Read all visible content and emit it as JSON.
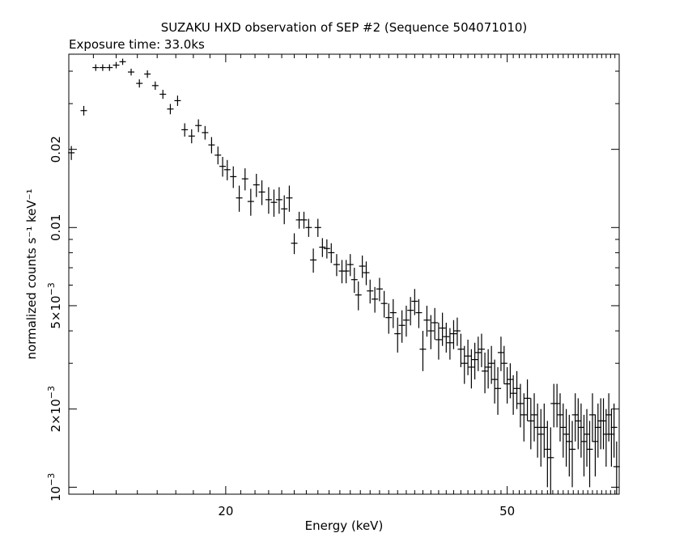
{
  "chart_data": {
    "type": "scatter",
    "title": "SUZAKU HXD observation of SEP #2 (Sequence 504071010)",
    "subtitle": "Exposure time: 33.0ks",
    "xlabel": "Energy (keV)",
    "ylabel": "normalized counts s⁻¹ keV⁻¹",
    "xscale": "log",
    "yscale": "log",
    "xlim": [
      12.0,
      72.0
    ],
    "ylim": [
      0.00094,
      0.0465
    ],
    "grid": false,
    "x_ticks": [
      {
        "value": 20,
        "label": "20"
      },
      {
        "value": 50,
        "label": "50"
      }
    ],
    "y_ticks": [
      {
        "value": 0.001,
        "base": "10",
        "exp": "−3"
      },
      {
        "value": 0.002,
        "base": "2×10",
        "exp": "−3"
      },
      {
        "value": 0.005,
        "base": "5×10",
        "exp": "−3"
      },
      {
        "value": 0.01,
        "label": "0.01"
      },
      {
        "value": 0.02,
        "label": "0.02"
      }
    ],
    "series": [
      {
        "points": [
          [
            12.1,
            0.0194,
            0.0012
          ],
          [
            12.6,
            0.0282,
            0.0012
          ],
          [
            13.1,
            0.0413,
            0.0012
          ],
          [
            13.4,
            0.0413,
            0.0012
          ],
          [
            13.7,
            0.0413,
            0.0012
          ],
          [
            14.0,
            0.0422,
            0.0012
          ],
          [
            14.3,
            0.0435,
            0.0012
          ],
          [
            14.7,
            0.0397,
            0.0012
          ],
          [
            15.1,
            0.0359,
            0.0013
          ],
          [
            15.5,
            0.039,
            0.0013
          ],
          [
            15.9,
            0.0352,
            0.0013
          ],
          [
            16.3,
            0.0326,
            0.0013
          ],
          [
            16.7,
            0.0286,
            0.0013
          ],
          [
            17.1,
            0.0308,
            0.0014
          ],
          [
            17.5,
            0.0238,
            0.0014
          ],
          [
            17.9,
            0.0225,
            0.0014
          ],
          [
            18.3,
            0.0247,
            0.0014
          ],
          [
            18.7,
            0.0232,
            0.0014
          ],
          [
            19.1,
            0.0208,
            0.0015
          ],
          [
            19.5,
            0.019,
            0.0015
          ],
          [
            19.8,
            0.0172,
            0.0015
          ],
          [
            20.1,
            0.0167,
            0.0015
          ],
          [
            20.5,
            0.0157,
            0.0015
          ],
          [
            20.9,
            0.013,
            0.0015
          ],
          [
            21.3,
            0.0154,
            0.0015
          ],
          [
            21.7,
            0.0126,
            0.0015
          ],
          [
            22.1,
            0.0146,
            0.0015
          ],
          [
            22.5,
            0.0137,
            0.0015
          ],
          [
            23.0,
            0.0128,
            0.0015
          ],
          [
            23.4,
            0.0125,
            0.0015
          ],
          [
            23.8,
            0.0128,
            0.0015
          ],
          [
            24.2,
            0.0118,
            0.0015
          ],
          [
            24.6,
            0.013,
            0.0015
          ],
          [
            25.0,
            0.0087,
            0.0008
          ],
          [
            25.4,
            0.0107,
            0.0008
          ],
          [
            25.8,
            0.0107,
            0.0008
          ],
          [
            26.2,
            0.01,
            0.0008
          ],
          [
            26.6,
            0.0075,
            0.0008
          ],
          [
            27.0,
            0.01,
            0.0008
          ],
          [
            27.4,
            0.0084,
            0.0007
          ],
          [
            27.8,
            0.0083,
            0.0007
          ],
          [
            28.2,
            0.008,
            0.0007
          ],
          [
            28.7,
            0.0072,
            0.0007
          ],
          [
            29.2,
            0.0068,
            0.0007
          ],
          [
            29.6,
            0.0068,
            0.0007
          ],
          [
            30.0,
            0.0072,
            0.0007
          ],
          [
            30.4,
            0.0063,
            0.0007
          ],
          [
            30.8,
            0.0055,
            0.0007
          ],
          [
            31.2,
            0.0071,
            0.0007
          ],
          [
            31.6,
            0.0067,
            0.0007
          ],
          [
            32.0,
            0.0057,
            0.0006
          ],
          [
            32.5,
            0.0053,
            0.0006
          ],
          [
            33.0,
            0.0058,
            0.0006
          ],
          [
            33.5,
            0.0051,
            0.0006
          ],
          [
            34.0,
            0.0045,
            0.0006
          ],
          [
            34.5,
            0.0047,
            0.0006
          ],
          [
            35.0,
            0.0039,
            0.0006
          ],
          [
            35.5,
            0.0042,
            0.0006
          ],
          [
            36.0,
            0.0044,
            0.0006
          ],
          [
            36.5,
            0.0048,
            0.0006
          ],
          [
            37.0,
            0.0052,
            0.0006
          ],
          [
            37.5,
            0.0047,
            0.0006
          ],
          [
            38.0,
            0.0034,
            0.0006
          ],
          [
            38.5,
            0.0044,
            0.0006
          ],
          [
            39.0,
            0.004,
            0.0006
          ],
          [
            39.5,
            0.0043,
            0.0006
          ],
          [
            40.0,
            0.0037,
            0.0006
          ],
          [
            40.5,
            0.0041,
            0.0006
          ],
          [
            41.0,
            0.0038,
            0.0005
          ],
          [
            41.5,
            0.0036,
            0.0005
          ],
          [
            42.0,
            0.0039,
            0.0005
          ],
          [
            42.5,
            0.004,
            0.0005
          ],
          [
            43.0,
            0.0034,
            0.0005
          ],
          [
            43.5,
            0.003,
            0.0005
          ],
          [
            44.0,
            0.0032,
            0.0005
          ],
          [
            44.5,
            0.0029,
            0.0005
          ],
          [
            45.0,
            0.0031,
            0.0005
          ],
          [
            45.5,
            0.0033,
            0.0005
          ],
          [
            46.0,
            0.0034,
            0.0005
          ],
          [
            46.5,
            0.0028,
            0.0005
          ],
          [
            47.0,
            0.0029,
            0.0005
          ],
          [
            47.5,
            0.003,
            0.0005
          ],
          [
            48.0,
            0.0026,
            0.0005
          ],
          [
            48.5,
            0.0024,
            0.0005
          ],
          [
            49.0,
            0.0033,
            0.0005
          ],
          [
            49.5,
            0.003,
            0.0005
          ],
          [
            50.0,
            0.0025,
            0.0004
          ],
          [
            50.5,
            0.0026,
            0.0004
          ],
          [
            51.0,
            0.0023,
            0.0004
          ],
          [
            51.6,
            0.0024,
            0.0004
          ],
          [
            52.2,
            0.0021,
            0.0004
          ],
          [
            52.8,
            0.0019,
            0.0004
          ],
          [
            53.4,
            0.0022,
            0.0004
          ],
          [
            54.0,
            0.0018,
            0.0004
          ],
          [
            54.6,
            0.0019,
            0.0004
          ],
          [
            55.2,
            0.0017,
            0.0004
          ],
          [
            55.8,
            0.0016,
            0.0004
          ],
          [
            56.4,
            0.0017,
            0.0004
          ],
          [
            57.0,
            0.0014,
            0.0004
          ],
          [
            57.6,
            0.0013,
            0.0004
          ],
          [
            58.2,
            0.0021,
            0.0004
          ],
          [
            58.8,
            0.0021,
            0.0004
          ],
          [
            59.4,
            0.0019,
            0.0004
          ],
          [
            60.0,
            0.0017,
            0.0004
          ],
          [
            60.6,
            0.0016,
            0.0004
          ],
          [
            61.2,
            0.0015,
            0.0004
          ],
          [
            61.8,
            0.0014,
            0.0004
          ],
          [
            62.4,
            0.0019,
            0.0004
          ],
          [
            63.0,
            0.0018,
            0.0004
          ],
          [
            63.6,
            0.0017,
            0.0004
          ],
          [
            64.2,
            0.0015,
            0.0004
          ],
          [
            64.8,
            0.0016,
            0.0004
          ],
          [
            65.4,
            0.0014,
            0.0004
          ],
          [
            66.0,
            0.0019,
            0.0004
          ],
          [
            66.6,
            0.0015,
            0.0004
          ],
          [
            67.2,
            0.0017,
            0.0004
          ],
          [
            67.8,
            0.0018,
            0.0004
          ],
          [
            68.4,
            0.0018,
            0.0004
          ],
          [
            69.0,
            0.0016,
            0.0004
          ],
          [
            69.6,
            0.0019,
            0.0004
          ],
          [
            70.2,
            0.0016,
            0.0004
          ],
          [
            70.8,
            0.0017,
            0.0004
          ],
          [
            71.4,
            0.0012,
            0.0003
          ]
        ]
      }
    ]
  }
}
